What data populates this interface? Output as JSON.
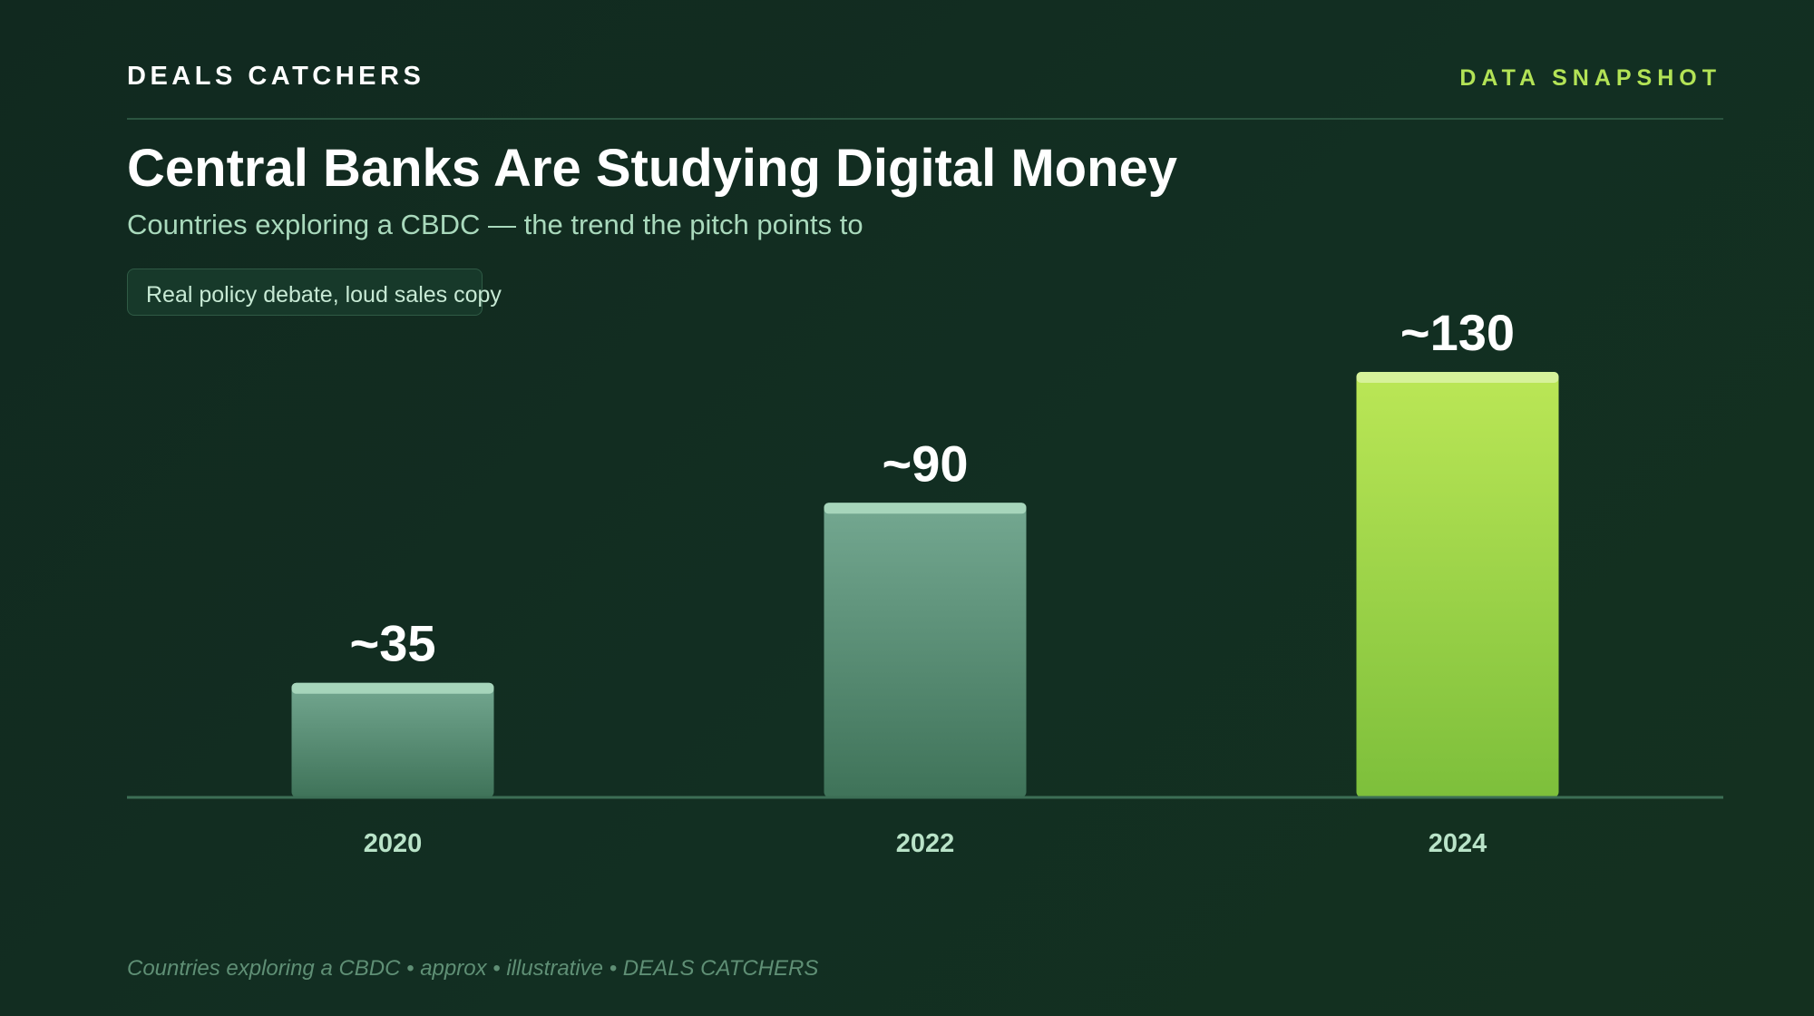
{
  "header": {
    "brand": "DEALS CATCHERS",
    "tag": "DATA SNAPSHOT"
  },
  "title": "Central Banks Are Studying Digital Money",
  "subtitle": "Countries exploring a CBDC — the trend the pitch points to",
  "pill": "Real policy debate, loud sales copy",
  "footer": "Countries exploring a CBDC • approx • illustrative • DEALS CATCHERS",
  "colors": {
    "background": "#122f22",
    "accent": "#b3e356",
    "bar_muted": "#5e9a80",
    "bar_highlight": "#a5e04d"
  },
  "chart_data": {
    "type": "bar",
    "categories": [
      "2020",
      "2022",
      "2024"
    ],
    "values": [
      35,
      90,
      130
    ],
    "value_labels": [
      "~35",
      "~90",
      "~130"
    ],
    "highlight_index": 2,
    "ylim": [
      0,
      130
    ],
    "grid": false,
    "legend": "none",
    "xlabel": "",
    "ylabel": ""
  }
}
